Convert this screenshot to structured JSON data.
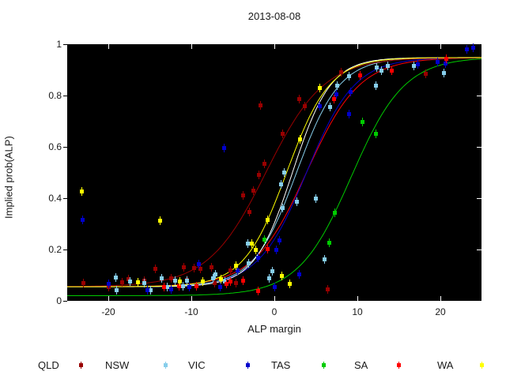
{
  "chart_data": {
    "type": "scatter",
    "title": "2013-08-08",
    "xlabel": "ALP margin",
    "ylabel": "Implied prob(ALP)",
    "xlim": [
      -25,
      25
    ],
    "ylim": [
      0,
      1
    ],
    "x_ticks": [
      -20,
      -10,
      0,
      10,
      20
    ],
    "x_tick_labels": [
      "-20",
      "-10",
      "0",
      "10",
      "20"
    ],
    "y_ticks": [
      0,
      0.2,
      0.4,
      0.6,
      0.8,
      1
    ],
    "y_tick_labels": [
      "0",
      "0.2",
      "0.4",
      "0.6",
      "0.8",
      "1"
    ],
    "grid": false,
    "plot_background": "#000000",
    "legend_position": "bottom",
    "series": [
      {
        "name": "QLD",
        "color": "#990000",
        "points": [
          [
            -23.0,
            0.068
          ],
          [
            -20.0,
            0.055
          ],
          [
            -18.4,
            0.071
          ],
          [
            -17.6,
            0.086
          ],
          [
            -15.7,
            0.08
          ],
          [
            -14.4,
            0.126
          ],
          [
            -12.5,
            0.089
          ],
          [
            -10.9,
            0.132
          ],
          [
            -10.5,
            0.083
          ],
          [
            -9.7,
            0.129
          ],
          [
            -8.9,
            0.126
          ],
          [
            -7.6,
            0.132
          ],
          [
            -7.2,
            0.068
          ],
          [
            -5.3,
            0.117
          ],
          [
            -4.6,
            0.068
          ],
          [
            -3.8,
            0.412
          ],
          [
            -3.0,
            0.345
          ],
          [
            -2.5,
            0.428
          ],
          [
            -1.9,
            0.49
          ],
          [
            -1.7,
            0.763
          ],
          [
            -1.2,
            0.535
          ],
          [
            1.0,
            0.652
          ],
          [
            3.0,
            0.787
          ],
          [
            3.7,
            0.757
          ],
          [
            6.4,
            0.046
          ],
          [
            8.1,
            0.89
          ],
          [
            18.3,
            0.886
          ]
        ]
      },
      {
        "name": "NSW",
        "color": "#87ceeb",
        "points": [
          [
            -19.1,
            0.092
          ],
          [
            -19.0,
            0.043
          ],
          [
            -17.4,
            0.074
          ],
          [
            -15.7,
            0.068
          ],
          [
            -14.9,
            0.043
          ],
          [
            -13.6,
            0.089
          ],
          [
            -12.9,
            0.055
          ],
          [
            -12.0,
            0.08
          ],
          [
            -11.0,
            0.058
          ],
          [
            -10.5,
            0.08
          ],
          [
            -7.4,
            0.089
          ],
          [
            -7.1,
            0.102
          ],
          [
            -6.0,
            0.074
          ],
          [
            -3.2,
            0.224
          ],
          [
            -3.1,
            0.145
          ],
          [
            -0.6,
            0.089
          ],
          [
            -0.2,
            0.114
          ],
          [
            0.8,
            0.455
          ],
          [
            1.0,
            0.363
          ],
          [
            1.2,
            0.5
          ],
          [
            2.7,
            0.387
          ],
          [
            5.0,
            0.4
          ],
          [
            6.1,
            0.163
          ],
          [
            6.7,
            0.754
          ],
          [
            7.6,
            0.84
          ],
          [
            9.0,
            0.874
          ],
          [
            12.3,
            0.84
          ],
          [
            12.4,
            0.908
          ],
          [
            12.9,
            0.898
          ],
          [
            13.7,
            0.914
          ],
          [
            16.8,
            0.914
          ],
          [
            20.5,
            0.889
          ]
        ]
      },
      {
        "name": "VIC",
        "color": "#0000cc",
        "points": [
          [
            -23.1,
            0.314
          ],
          [
            -20.0,
            0.065
          ],
          [
            -15.3,
            0.043
          ],
          [
            -12.5,
            0.046
          ],
          [
            -10.3,
            0.055
          ],
          [
            -9.1,
            0.142
          ],
          [
            -6.5,
            0.055
          ],
          [
            -6.1,
            0.594
          ],
          [
            -4.4,
            0.117
          ],
          [
            -2.0,
            0.169
          ],
          [
            0.0,
            0.055
          ],
          [
            0.2,
            0.197
          ],
          [
            0.6,
            0.234
          ],
          [
            3.0,
            0.102
          ],
          [
            5.5,
            0.76
          ],
          [
            7.5,
            0.806
          ],
          [
            9.0,
            0.729
          ],
          [
            9.2,
            0.815
          ],
          [
            17.3,
            0.923
          ],
          [
            19.7,
            0.932
          ],
          [
            20.7,
            0.926
          ],
          [
            23.2,
            0.98
          ],
          [
            24.0,
            0.985
          ]
        ]
      },
      {
        "name": "TAS",
        "color": "#00cc00",
        "points": [
          [
            -1.2,
            0.24
          ],
          [
            6.6,
            0.227
          ],
          [
            7.3,
            0.342
          ],
          [
            10.6,
            0.698
          ],
          [
            12.3,
            0.652
          ]
        ]
      },
      {
        "name": "SA",
        "color": "#ff0000",
        "points": [
          [
            -13.3,
            0.055
          ],
          [
            -11.5,
            0.058
          ],
          [
            -9.4,
            0.058
          ],
          [
            -5.8,
            0.065
          ],
          [
            -5.3,
            0.074
          ],
          [
            -3.8,
            0.077
          ],
          [
            -2.0,
            0.04
          ],
          [
            -0.8,
            0.203
          ],
          [
            7.2,
            0.785
          ],
          [
            10.4,
            0.88
          ],
          [
            14.2,
            0.898
          ],
          [
            20.8,
            0.942
          ]
        ]
      },
      {
        "name": "WA",
        "color": "#ffff00",
        "points": [
          [
            -23.2,
            0.425
          ],
          [
            -16.5,
            0.071
          ],
          [
            -13.8,
            0.311
          ],
          [
            -11.4,
            0.074
          ],
          [
            -8.6,
            0.074
          ],
          [
            -6.4,
            0.086
          ],
          [
            -4.6,
            0.138
          ],
          [
            -2.7,
            0.224
          ],
          [
            -2.2,
            0.197
          ],
          [
            -0.8,
            0.314
          ],
          [
            0.9,
            0.098
          ],
          [
            1.9,
            0.065
          ],
          [
            3.1,
            0.63
          ],
          [
            5.5,
            0.828
          ]
        ]
      }
    ],
    "curves": [
      {
        "name": "TAS",
        "color": "#00cc00",
        "lower": 0.02,
        "upper": 0.95,
        "x0": 9.3,
        "s": 3.2
      },
      {
        "name": "SA",
        "color": "#ff0000",
        "lower": 0.055,
        "upper": 0.948,
        "x0": 3.9,
        "s": 3.2
      },
      {
        "name": "VIC",
        "color": "#0000cc",
        "lower": 0.055,
        "upper": 0.948,
        "x0": 3.9,
        "s": 2.9
      },
      {
        "name": "NSW",
        "color": "#87ceeb",
        "lower": 0.055,
        "upper": 0.948,
        "x0": 2.7,
        "s": 2.6
      },
      {
        "name": "overall",
        "color": "#ffffff",
        "lower": 0.055,
        "upper": 0.948,
        "x0": 2.2,
        "s": 2.3
      },
      {
        "name": "QLD",
        "color": "#990000",
        "lower": 0.055,
        "upper": 0.948,
        "x0": -1.0,
        "s": 3.5
      },
      {
        "name": "WA",
        "color": "#ffff00",
        "lower": 0.055,
        "upper": 0.948,
        "x0": 1.5,
        "s": 2.6
      }
    ],
    "legend": [
      {
        "label": "QLD",
        "color": "#990000"
      },
      {
        "label": "NSW",
        "color": "#87ceeb"
      },
      {
        "label": "VIC",
        "color": "#0000cc"
      },
      {
        "label": "TAS",
        "color": "#00cc00"
      },
      {
        "label": "SA",
        "color": "#ff0000"
      },
      {
        "label": "WA",
        "color": "#ffff00"
      }
    ]
  }
}
